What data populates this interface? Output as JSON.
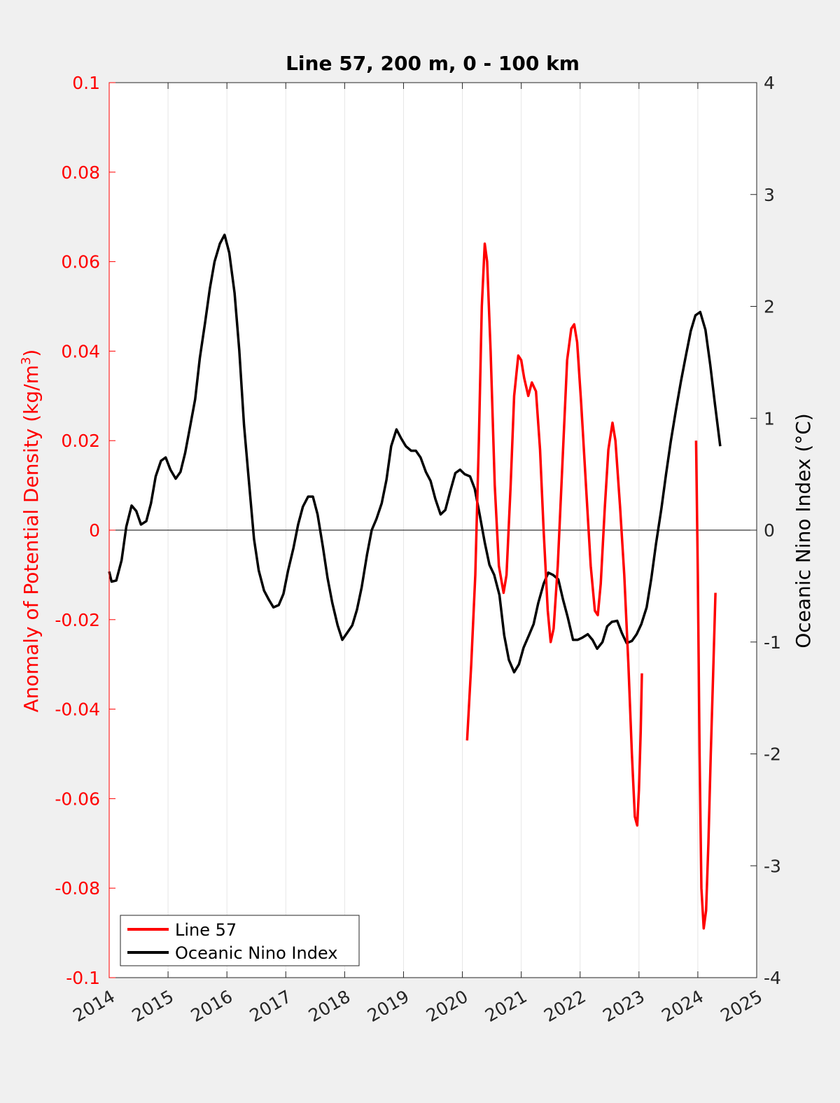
{
  "chart_data": {
    "type": "line",
    "title": "Line 57, 200 m, 0 - 100 km",
    "xlabel": "",
    "ylabel_left": "Anomaly of Potential Density (kg/m",
    "ylabel_left_sup": "3",
    "ylabel_left_close": ")",
    "ylabel_right": "Oceanic Nino Index (°C)",
    "xlim": [
      2014,
      2025
    ],
    "ylim_left": [
      -0.1,
      0.1
    ],
    "ylim_right": [
      -4,
      4
    ],
    "x_ticks": [
      "2014",
      "2015",
      "2016",
      "2017",
      "2018",
      "2019",
      "2020",
      "2021",
      "2022",
      "2023",
      "2024",
      "2025"
    ],
    "y_left_ticks": [
      "-0.1",
      "-0.08",
      "-0.06",
      "-0.04",
      "-0.02",
      "0",
      "0.02",
      "0.04",
      "0.06",
      "0.08",
      "0.1"
    ],
    "y_right_ticks": [
      "-4",
      "-3",
      "-2",
      "-1",
      "0",
      "1",
      "2",
      "3",
      "4"
    ],
    "vertical_grid": true,
    "zero_line": true,
    "legend_position": "bottom-left",
    "legend": [
      "Line 57",
      "Oceanic Nino Index"
    ],
    "colors": {
      "line57": "#ff0000",
      "oni": "#000000",
      "left_axis": "#ff0000",
      "right_axis": "#000000",
      "background": "#f0f0f0",
      "plot_bg": "#ffffff"
    },
    "series": [
      {
        "name": "Line 57",
        "axis": "left",
        "segments": [
          [
            [
              2020.08,
              -0.047
            ],
            [
              2020.15,
              -0.03
            ],
            [
              2020.22,
              -0.01
            ],
            [
              2020.28,
              0.02
            ],
            [
              2020.33,
              0.05
            ],
            [
              2020.38,
              0.064
            ],
            [
              2020.42,
              0.06
            ],
            [
              2020.48,
              0.04
            ],
            [
              2020.55,
              0.01
            ],
            [
              2020.62,
              -0.008
            ],
            [
              2020.7,
              -0.014
            ],
            [
              2020.75,
              -0.01
            ],
            [
              2020.82,
              0.01
            ],
            [
              2020.88,
              0.03
            ],
            [
              2020.95,
              0.039
            ],
            [
              2021.0,
              0.038
            ],
            [
              2021.05,
              0.034
            ],
            [
              2021.12,
              0.03
            ],
            [
              2021.18,
              0.033
            ],
            [
              2021.25,
              0.031
            ],
            [
              2021.32,
              0.018
            ],
            [
              2021.38,
              0.0
            ],
            [
              2021.45,
              -0.018
            ],
            [
              2021.5,
              -0.025
            ],
            [
              2021.55,
              -0.022
            ],
            [
              2021.62,
              -0.008
            ],
            [
              2021.7,
              0.015
            ],
            [
              2021.78,
              0.038
            ],
            [
              2021.85,
              0.045
            ],
            [
              2021.9,
              0.046
            ],
            [
              2021.95,
              0.042
            ],
            [
              2022.02,
              0.028
            ],
            [
              2022.1,
              0.01
            ],
            [
              2022.18,
              -0.008
            ],
            [
              2022.25,
              -0.018
            ],
            [
              2022.3,
              -0.019
            ],
            [
              2022.35,
              -0.012
            ],
            [
              2022.42,
              0.005
            ],
            [
              2022.48,
              0.018
            ],
            [
              2022.55,
              0.024
            ],
            [
              2022.6,
              0.02
            ],
            [
              2022.68,
              0.005
            ],
            [
              2022.75,
              -0.01
            ],
            [
              2022.82,
              -0.03
            ],
            [
              2022.88,
              -0.05
            ],
            [
              2022.93,
              -0.064
            ],
            [
              2022.97,
              -0.066
            ],
            [
              2023.0,
              -0.058
            ],
            [
              2023.03,
              -0.045
            ],
            [
              2023.05,
              -0.032
            ]
          ],
          [
            [
              2023.97,
              0.02
            ],
            [
              2024.0,
              -0.01
            ],
            [
              2024.03,
              -0.05
            ],
            [
              2024.06,
              -0.08
            ],
            [
              2024.1,
              -0.089
            ],
            [
              2024.14,
              -0.085
            ],
            [
              2024.18,
              -0.07
            ],
            [
              2024.22,
              -0.05
            ],
            [
              2024.26,
              -0.032
            ],
            [
              2024.3,
              -0.014
            ]
          ]
        ]
      },
      {
        "name": "Oceanic Nino Index",
        "axis": "right",
        "points": [
          [
            2014.0,
            -0.37
          ],
          [
            2014.04,
            -0.46
          ],
          [
            2014.12,
            -0.45
          ],
          [
            2014.21,
            -0.27
          ],
          [
            2014.29,
            0.03
          ],
          [
            2014.38,
            0.22
          ],
          [
            2014.46,
            0.17
          ],
          [
            2014.54,
            0.05
          ],
          [
            2014.63,
            0.08
          ],
          [
            2014.71,
            0.24
          ],
          [
            2014.79,
            0.48
          ],
          [
            2014.88,
            0.62
          ],
          [
            2014.96,
            0.65
          ],
          [
            2015.04,
            0.54
          ],
          [
            2015.13,
            0.46
          ],
          [
            2015.21,
            0.52
          ],
          [
            2015.29,
            0.69
          ],
          [
            2015.38,
            0.94
          ],
          [
            2015.46,
            1.17
          ],
          [
            2015.54,
            1.54
          ],
          [
            2015.63,
            1.86
          ],
          [
            2015.71,
            2.16
          ],
          [
            2015.79,
            2.4
          ],
          [
            2015.88,
            2.56
          ],
          [
            2015.96,
            2.64
          ],
          [
            2016.04,
            2.48
          ],
          [
            2016.13,
            2.12
          ],
          [
            2016.21,
            1.61
          ],
          [
            2016.29,
            0.94
          ],
          [
            2016.38,
            0.4
          ],
          [
            2016.46,
            -0.08
          ],
          [
            2016.54,
            -0.36
          ],
          [
            2016.63,
            -0.54
          ],
          [
            2016.71,
            -0.62
          ],
          [
            2016.79,
            -0.69
          ],
          [
            2016.88,
            -0.67
          ],
          [
            2016.96,
            -0.57
          ],
          [
            2017.04,
            -0.36
          ],
          [
            2017.13,
            -0.16
          ],
          [
            2017.21,
            0.05
          ],
          [
            2017.29,
            0.21
          ],
          [
            2017.38,
            0.3
          ],
          [
            2017.46,
            0.3
          ],
          [
            2017.54,
            0.14
          ],
          [
            2017.63,
            -0.15
          ],
          [
            2017.71,
            -0.43
          ],
          [
            2017.79,
            -0.65
          ],
          [
            2017.88,
            -0.85
          ],
          [
            2017.96,
            -0.98
          ],
          [
            2018.04,
            -0.92
          ],
          [
            2018.13,
            -0.85
          ],
          [
            2018.21,
            -0.71
          ],
          [
            2018.29,
            -0.51
          ],
          [
            2018.38,
            -0.22
          ],
          [
            2018.46,
            0.0
          ],
          [
            2018.54,
            0.1
          ],
          [
            2018.63,
            0.24
          ],
          [
            2018.71,
            0.45
          ],
          [
            2018.79,
            0.75
          ],
          [
            2018.88,
            0.9
          ],
          [
            2018.96,
            0.82
          ],
          [
            2019.04,
            0.75
          ],
          [
            2019.13,
            0.71
          ],
          [
            2019.21,
            0.71
          ],
          [
            2019.29,
            0.65
          ],
          [
            2019.38,
            0.52
          ],
          [
            2019.46,
            0.44
          ],
          [
            2019.54,
            0.28
          ],
          [
            2019.63,
            0.14
          ],
          [
            2019.71,
            0.18
          ],
          [
            2019.79,
            0.34
          ],
          [
            2019.88,
            0.51
          ],
          [
            2019.96,
            0.54
          ],
          [
            2020.04,
            0.5
          ],
          [
            2020.13,
            0.48
          ],
          [
            2020.21,
            0.37
          ],
          [
            2020.29,
            0.15
          ],
          [
            2020.38,
            -0.11
          ],
          [
            2020.46,
            -0.31
          ],
          [
            2020.54,
            -0.4
          ],
          [
            2020.63,
            -0.58
          ],
          [
            2020.71,
            -0.94
          ],
          [
            2020.79,
            -1.16
          ],
          [
            2020.88,
            -1.27
          ],
          [
            2020.96,
            -1.2
          ],
          [
            2021.04,
            -1.05
          ],
          [
            2021.13,
            -0.94
          ],
          [
            2021.21,
            -0.84
          ],
          [
            2021.29,
            -0.65
          ],
          [
            2021.38,
            -0.48
          ],
          [
            2021.46,
            -0.38
          ],
          [
            2021.54,
            -0.4
          ],
          [
            2021.63,
            -0.44
          ],
          [
            2021.71,
            -0.62
          ],
          [
            2021.79,
            -0.78
          ],
          [
            2021.88,
            -0.98
          ],
          [
            2021.96,
            -0.98
          ],
          [
            2022.04,
            -0.96
          ],
          [
            2022.13,
            -0.93
          ],
          [
            2022.21,
            -0.98
          ],
          [
            2022.29,
            -1.06
          ],
          [
            2022.38,
            -1.0
          ],
          [
            2022.46,
            -0.86
          ],
          [
            2022.54,
            -0.82
          ],
          [
            2022.63,
            -0.81
          ],
          [
            2022.71,
            -0.92
          ],
          [
            2022.79,
            -1.01
          ],
          [
            2022.88,
            -0.99
          ],
          [
            2022.96,
            -0.93
          ],
          [
            2023.04,
            -0.84
          ],
          [
            2023.13,
            -0.69
          ],
          [
            2023.21,
            -0.43
          ],
          [
            2023.29,
            -0.12
          ],
          [
            2023.38,
            0.19
          ],
          [
            2023.46,
            0.5
          ],
          [
            2023.54,
            0.79
          ],
          [
            2023.63,
            1.08
          ],
          [
            2023.71,
            1.32
          ],
          [
            2023.79,
            1.54
          ],
          [
            2023.88,
            1.78
          ],
          [
            2023.96,
            1.92
          ],
          [
            2024.04,
            1.95
          ],
          [
            2024.13,
            1.79
          ],
          [
            2024.21,
            1.48
          ],
          [
            2024.29,
            1.13
          ],
          [
            2024.38,
            0.75
          ]
        ]
      }
    ]
  }
}
